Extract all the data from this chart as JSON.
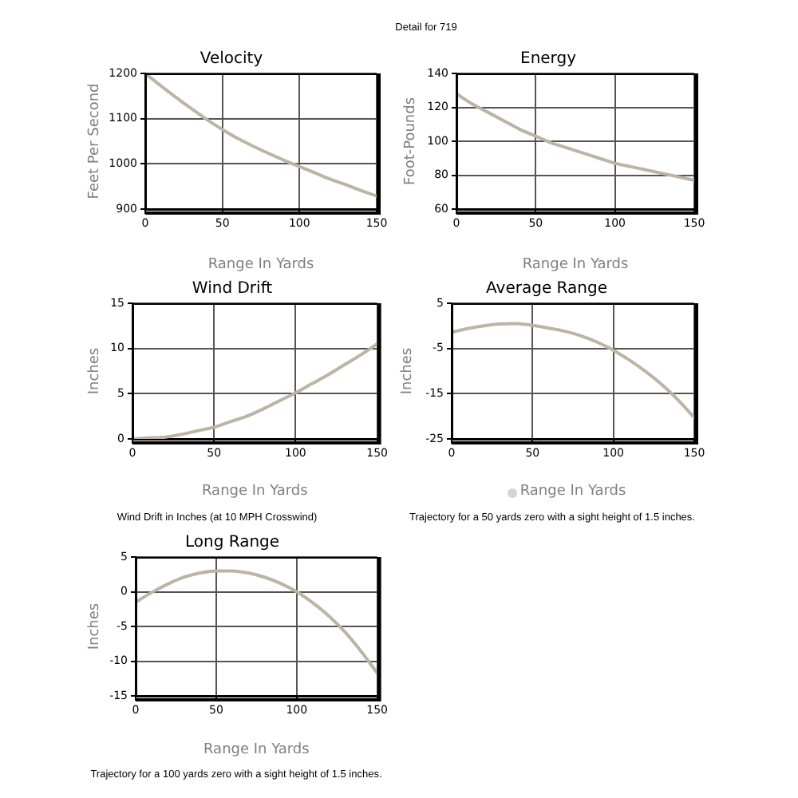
{
  "chart_data": [
    {
      "type": "other",
      "title": "Detail for 719"
    },
    {
      "type": "line",
      "title": "Velocity",
      "xlabel": "Range In Yards",
      "ylabel": "Feet Per Second",
      "x": [
        0,
        10,
        20,
        30,
        40,
        50,
        60,
        70,
        80,
        90,
        100,
        110,
        120,
        130,
        140,
        150
      ],
      "series": [
        {
          "color": "#bcb4a4",
          "values": [
            1200,
            1173,
            1147,
            1122,
            1098,
            1076,
            1056,
            1039,
            1023,
            1008,
            994,
            980,
            966,
            954,
            941,
            929
          ]
        }
      ],
      "xlim": [
        0,
        150
      ],
      "xticks": [
        0,
        50,
        100,
        150
      ],
      "ylim": [
        900,
        1200
      ],
      "yticks": [
        900,
        1000,
        1100,
        1200
      ],
      "grid": true
    },
    {
      "type": "line",
      "title": "Energy",
      "xlabel": "Range In Yards",
      "ylabel": "Foot-Pounds",
      "x": [
        0,
        10,
        20,
        30,
        40,
        50,
        60,
        70,
        80,
        90,
        100,
        110,
        120,
        130,
        140,
        150
      ],
      "series": [
        {
          "color": "#bcb4a4",
          "values": [
            128,
            122,
            117,
            112,
            107,
            103,
            99,
            96,
            93,
            90,
            87,
            85,
            83,
            81,
            79,
            77
          ]
        }
      ],
      "xlim": [
        0,
        150
      ],
      "xticks": [
        0,
        50,
        100,
        150
      ],
      "ylim": [
        60,
        140
      ],
      "yticks": [
        60,
        80,
        100,
        120,
        140
      ],
      "grid": true
    },
    {
      "type": "line",
      "title": "Wind Drift",
      "xlabel": "Range In Yards",
      "ylabel": "Inches",
      "annotations": [
        "Wind Drift in Inches (at 10 MPH Crosswind)"
      ],
      "x": [
        0,
        10,
        20,
        30,
        40,
        50,
        60,
        70,
        80,
        90,
        100,
        110,
        120,
        130,
        140,
        150
      ],
      "series": [
        {
          "color": "#bcb4a4",
          "values": [
            0,
            0.1,
            0.2,
            0.5,
            0.9,
            1.3,
            1.9,
            2.5,
            3.3,
            4.2,
            5.1,
            6.1,
            7.1,
            8.2,
            9.3,
            10.5
          ]
        }
      ],
      "xlim": [
        0,
        150
      ],
      "xticks": [
        0,
        50,
        100,
        150
      ],
      "ylim": [
        0,
        15
      ],
      "yticks": [
        0,
        5,
        10,
        15
      ],
      "grid": true
    },
    {
      "type": "line",
      "title": "Average Range",
      "xlabel": "Range In Yards",
      "ylabel": "Inches",
      "annotations": [
        "Trajectory for a 50 yards zero with a sight height of 1.5 inches."
      ],
      "x": [
        0,
        10,
        20,
        30,
        40,
        50,
        60,
        70,
        80,
        90,
        100,
        110,
        120,
        130,
        140,
        150
      ],
      "series": [
        {
          "color": "#bcb4a4",
          "values": [
            -1.4,
            -0.6,
            0,
            0.4,
            0.5,
            0.1,
            -0.5,
            -1.2,
            -2.2,
            -3.6,
            -5.4,
            -7.6,
            -10.1,
            -13,
            -16.4,
            -20.3
          ]
        }
      ],
      "xlim": [
        0,
        150
      ],
      "xticks": [
        0,
        50,
        100,
        150
      ],
      "ylim": [
        -25,
        5
      ],
      "yticks": [
        -25,
        -15,
        -5,
        5
      ],
      "grid": true
    },
    {
      "type": "line",
      "title": "Long Range",
      "xlabel": "Range In Yards",
      "ylabel": "Inches",
      "annotations": [
        "Trajectory for a 100 yards zero with a sight height of 1.5 inches."
      ],
      "x": [
        0,
        10,
        20,
        30,
        40,
        50,
        60,
        70,
        80,
        90,
        100,
        110,
        120,
        130,
        140,
        150
      ],
      "series": [
        {
          "color": "#bcb4a4",
          "values": [
            -1.5,
            -0.1,
            1.1,
            2.1,
            2.7,
            3,
            3,
            2.7,
            2.1,
            1.2,
            0,
            -1.6,
            -3.5,
            -5.8,
            -8.6,
            -11.7
          ]
        }
      ],
      "xlim": [
        0,
        150
      ],
      "xticks": [
        0,
        50,
        100,
        150
      ],
      "ylim": [
        -15,
        5
      ],
      "yticks": [
        -15,
        -10,
        -5,
        0,
        5
      ],
      "grid": true
    }
  ]
}
